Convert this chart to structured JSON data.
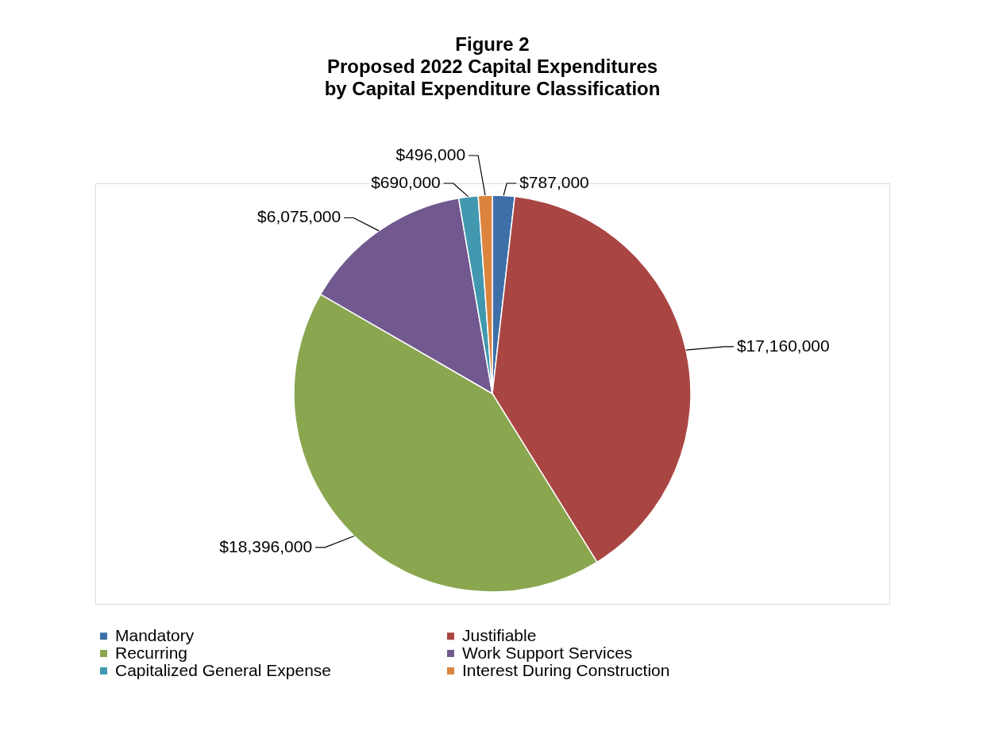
{
  "chart_data": {
    "type": "pie",
    "title": "Figure 2",
    "subtitle": "Proposed 2022 Capital Expenditures by Capital Expenditure Classification",
    "categories": [
      "Mandatory",
      "Justifiable",
      "Recurring",
      "Work Support Services",
      "Capitalized General Expense",
      "Interest During Construction"
    ],
    "values": [
      787000,
      17160000,
      18396000,
      6075000,
      690000,
      496000
    ],
    "value_labels": [
      "$787,000",
      "$17,160,000",
      "$18,396,000",
      "$6,075,000",
      "$690,000",
      "$496,000"
    ],
    "colors": [
      "#3f6fa8",
      "#a94643",
      "#8aa64f",
      "#71588f",
      "#4198af",
      "#db843d"
    ],
    "legend": "bottom"
  }
}
